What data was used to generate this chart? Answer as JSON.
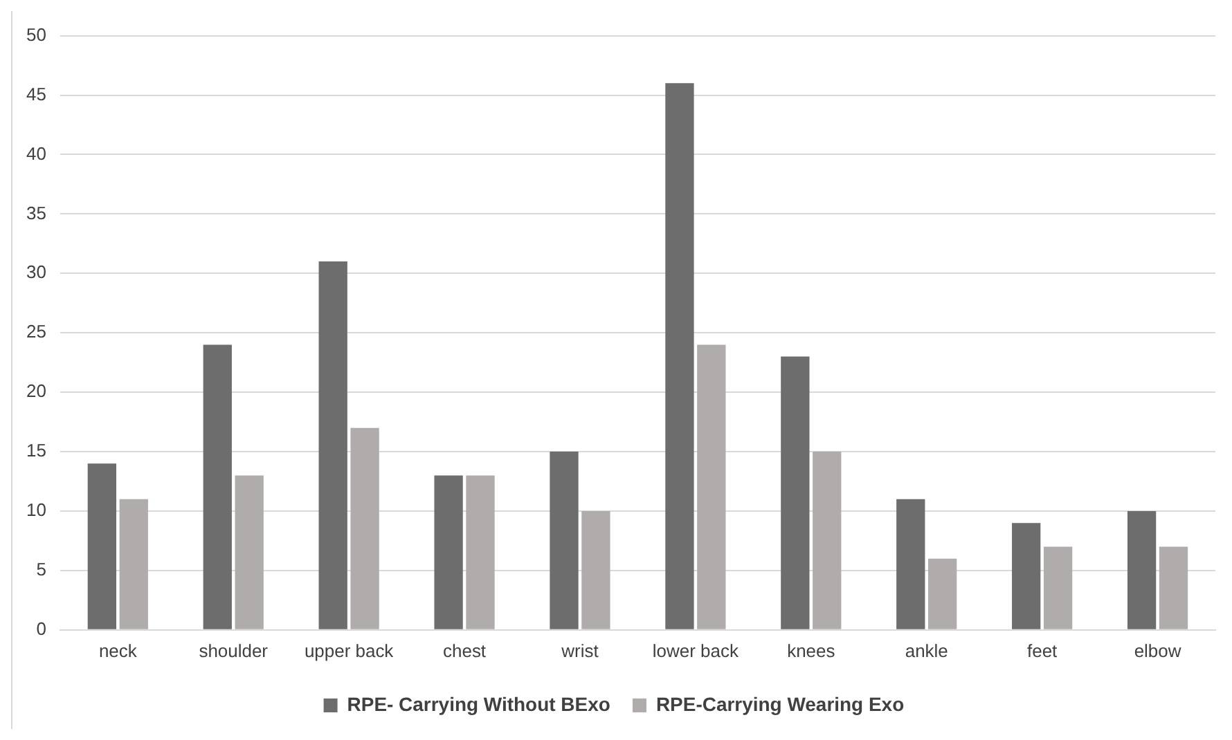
{
  "chart_data": {
    "type": "bar",
    "categories": [
      "neck",
      "shoulder",
      "upper back",
      "chest",
      "wrist",
      "lower back",
      "knees",
      "ankle",
      "feet",
      "elbow"
    ],
    "series": [
      {
        "name": "RPE- Carrying Without BExo",
        "color": "#6d6d6d",
        "values": [
          14,
          24,
          31,
          13,
          15,
          46,
          23,
          11,
          9,
          10
        ]
      },
      {
        "name": "RPE-Carrying Wearing Exo",
        "color": "#b0acac",
        "values": [
          11,
          13,
          17,
          13,
          10,
          24,
          15,
          6,
          7,
          7
        ]
      }
    ],
    "ylim": [
      0,
      50
    ],
    "yticks": [
      0,
      5,
      10,
      15,
      20,
      25,
      30,
      35,
      40,
      45,
      50
    ],
    "grid": "y",
    "legend": "bottom"
  }
}
